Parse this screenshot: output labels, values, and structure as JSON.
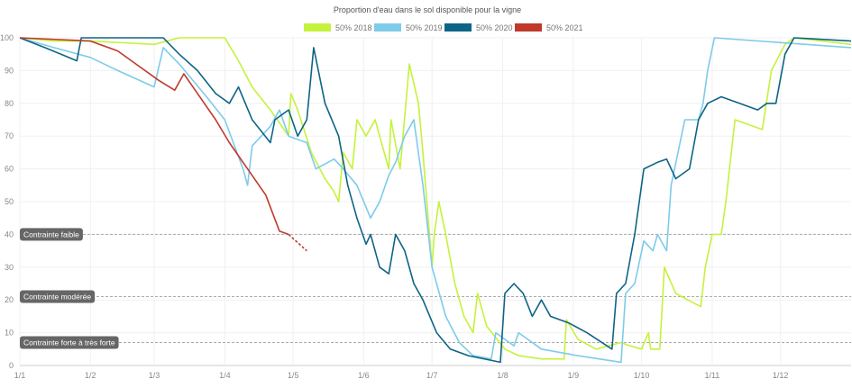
{
  "chart_data": {
    "type": "line",
    "title": "Proportion d'eau dans le sol disponible pour la vigne",
    "xlabel": "",
    "ylabel": "",
    "xlim": [
      0,
      365
    ],
    "ylim": [
      0,
      100
    ],
    "yticks": [
      0,
      10,
      20,
      30,
      40,
      50,
      60,
      70,
      80,
      90,
      100
    ],
    "xticks": [
      {
        "day": 0,
        "label": "1/1"
      },
      {
        "day": 31,
        "label": "1/2"
      },
      {
        "day": 59,
        "label": "1/3"
      },
      {
        "day": 90,
        "label": "1/4"
      },
      {
        "day": 120,
        "label": "1/5"
      },
      {
        "day": 151,
        "label": "1/6"
      },
      {
        "day": 181,
        "label": "1/7"
      },
      {
        "day": 212,
        "label": "1/8"
      },
      {
        "day": 243,
        "label": "1/9"
      },
      {
        "day": 273,
        "label": "1/10"
      },
      {
        "day": 304,
        "label": "1/11"
      },
      {
        "day": 334,
        "label": "1/12"
      }
    ],
    "grid": true,
    "legend": "top-center",
    "thresholds": [
      {
        "value": 40,
        "label": "Contrainte faible"
      },
      {
        "value": 21,
        "label": "Contrainte modérée"
      },
      {
        "value": 7,
        "label": "Contrainte forte à très forte"
      }
    ],
    "series": [
      {
        "name": "50% 2018",
        "color": "#c5f23c",
        "points": [
          [
            0,
            100
          ],
          [
            15,
            99
          ],
          [
            31,
            99
          ],
          [
            59,
            98
          ],
          [
            70,
            100
          ],
          [
            90,
            100
          ],
          [
            96,
            93
          ],
          [
            102,
            85
          ],
          [
            110,
            78
          ],
          [
            118,
            70
          ],
          [
            119,
            83
          ],
          [
            122,
            78
          ],
          [
            128,
            65
          ],
          [
            134,
            57
          ],
          [
            138,
            53
          ],
          [
            140,
            50
          ],
          [
            142,
            65
          ],
          [
            146,
            60
          ],
          [
            148,
            75
          ],
          [
            152,
            70
          ],
          [
            156,
            75
          ],
          [
            158,
            70
          ],
          [
            162,
            60
          ],
          [
            163,
            75
          ],
          [
            167,
            60
          ],
          [
            171,
            92
          ],
          [
            175,
            80
          ],
          [
            177,
            65
          ],
          [
            181,
            30
          ],
          [
            182,
            40
          ],
          [
            184,
            50
          ],
          [
            187,
            40
          ],
          [
            191,
            25
          ],
          [
            195,
            15
          ],
          [
            199,
            10
          ],
          [
            201,
            22
          ],
          [
            205,
            12
          ],
          [
            213,
            5
          ],
          [
            219,
            3
          ],
          [
            229,
            2
          ],
          [
            239,
            2
          ],
          [
            240,
            14
          ],
          [
            245,
            8
          ],
          [
            253,
            5
          ],
          [
            264,
            7
          ],
          [
            268,
            6
          ],
          [
            273,
            5
          ],
          [
            276,
            10
          ],
          [
            277,
            5
          ],
          [
            281,
            5
          ],
          [
            283,
            30
          ],
          [
            288,
            22
          ],
          [
            296,
            19
          ],
          [
            299,
            18
          ],
          [
            301,
            30
          ],
          [
            304,
            40
          ],
          [
            308,
            40
          ],
          [
            310,
            50
          ],
          [
            314,
            75
          ],
          [
            326,
            72
          ],
          [
            330,
            90
          ],
          [
            336,
            98
          ],
          [
            340,
            100
          ],
          [
            365,
            98
          ]
        ]
      },
      {
        "name": "50% 2019",
        "color": "#7ecbea",
        "points": [
          [
            0,
            100
          ],
          [
            15,
            97
          ],
          [
            31,
            94
          ],
          [
            43,
            90
          ],
          [
            59,
            85
          ],
          [
            63,
            97
          ],
          [
            70,
            92
          ],
          [
            82,
            82
          ],
          [
            90,
            75
          ],
          [
            98,
            60
          ],
          [
            100,
            55
          ],
          [
            102,
            67
          ],
          [
            110,
            73
          ],
          [
            114,
            78
          ],
          [
            118,
            70
          ],
          [
            126,
            68
          ],
          [
            130,
            60
          ],
          [
            138,
            63
          ],
          [
            142,
            60
          ],
          [
            148,
            55
          ],
          [
            154,
            45
          ],
          [
            158,
            50
          ],
          [
            162,
            58
          ],
          [
            165,
            62
          ],
          [
            169,
            70
          ],
          [
            173,
            75
          ],
          [
            177,
            55
          ],
          [
            181,
            30
          ],
          [
            187,
            15
          ],
          [
            193,
            7
          ],
          [
            199,
            3
          ],
          [
            207,
            2
          ],
          [
            209,
            10
          ],
          [
            217,
            6
          ],
          [
            219,
            10
          ],
          [
            229,
            5
          ],
          [
            245,
            3
          ],
          [
            264,
            1
          ],
          [
            266,
            22
          ],
          [
            270,
            25
          ],
          [
            274,
            38
          ],
          [
            278,
            35
          ],
          [
            280,
            40
          ],
          [
            284,
            35
          ],
          [
            286,
            55
          ],
          [
            292,
            75
          ],
          [
            298,
            75
          ],
          [
            300,
            80
          ],
          [
            302,
            90
          ],
          [
            305,
            100
          ],
          [
            365,
            97
          ]
        ]
      },
      {
        "name": "50% 2020",
        "color": "#0e6486",
        "points": [
          [
            0,
            100
          ],
          [
            11,
            97
          ],
          [
            25,
            93
          ],
          [
            27,
            100
          ],
          [
            43,
            100
          ],
          [
            63,
            100
          ],
          [
            70,
            95
          ],
          [
            78,
            90
          ],
          [
            86,
            83
          ],
          [
            92,
            80
          ],
          [
            96,
            85
          ],
          [
            102,
            75
          ],
          [
            110,
            68
          ],
          [
            112,
            75
          ],
          [
            118,
            78
          ],
          [
            122,
            70
          ],
          [
            126,
            75
          ],
          [
            129,
            97
          ],
          [
            134,
            80
          ],
          [
            140,
            70
          ],
          [
            144,
            55
          ],
          [
            148,
            45
          ],
          [
            152,
            37
          ],
          [
            154,
            40
          ],
          [
            158,
            30
          ],
          [
            162,
            28
          ],
          [
            165,
            40
          ],
          [
            169,
            35
          ],
          [
            173,
            25
          ],
          [
            177,
            20
          ],
          [
            183,
            10
          ],
          [
            189,
            5
          ],
          [
            197,
            3
          ],
          [
            211,
            1
          ],
          [
            213,
            22
          ],
          [
            217,
            25
          ],
          [
            221,
            22
          ],
          [
            225,
            15
          ],
          [
            229,
            20
          ],
          [
            233,
            15
          ],
          [
            241,
            13
          ],
          [
            249,
            10
          ],
          [
            260,
            5
          ],
          [
            262,
            22
          ],
          [
            266,
            25
          ],
          [
            270,
            40
          ],
          [
            274,
            60
          ],
          [
            280,
            62
          ],
          [
            284,
            63
          ],
          [
            288,
            57
          ],
          [
            294,
            60
          ],
          [
            298,
            75
          ],
          [
            302,
            80
          ],
          [
            308,
            82
          ],
          [
            316,
            80
          ],
          [
            324,
            78
          ],
          [
            328,
            80
          ],
          [
            332,
            80
          ],
          [
            336,
            95
          ],
          [
            340,
            100
          ],
          [
            365,
            99
          ]
        ]
      },
      {
        "name": "50% 2021",
        "color": "#c0392b",
        "points": [
          [
            0,
            100
          ],
          [
            31,
            99
          ],
          [
            43,
            96
          ],
          [
            51,
            92
          ],
          [
            61,
            87
          ],
          [
            68,
            84
          ],
          [
            72,
            89
          ],
          [
            76,
            85
          ],
          [
            86,
            75
          ],
          [
            92,
            68
          ],
          [
            100,
            60
          ],
          [
            108,
            52
          ],
          [
            114,
            41
          ],
          [
            118,
            40
          ]
        ],
        "forecast": [
          [
            118,
            40
          ],
          [
            126,
            35
          ]
        ]
      }
    ]
  }
}
